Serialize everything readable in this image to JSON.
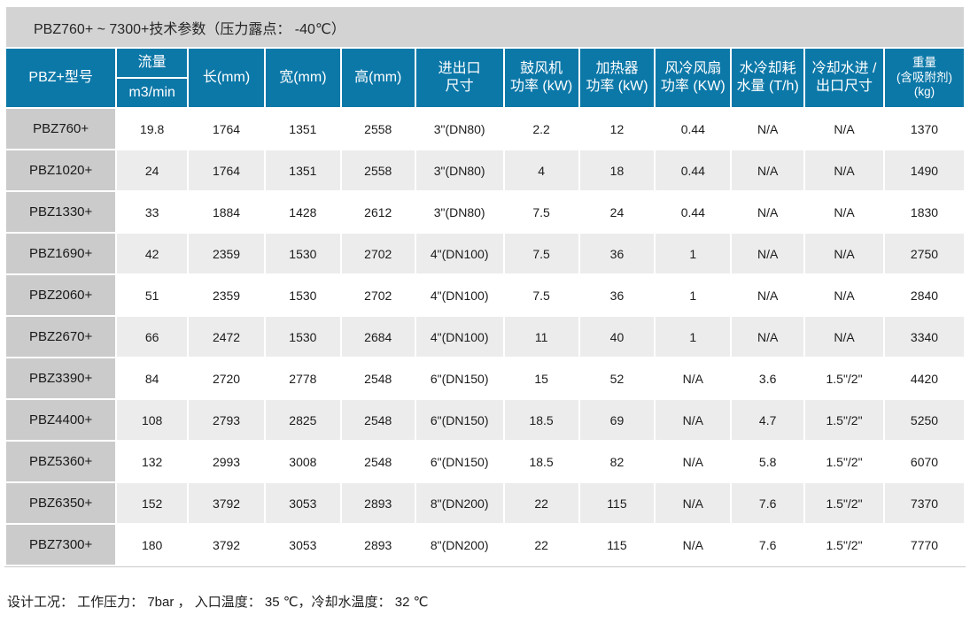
{
  "title": "PBZ760+ ~ 7300+技术参数（压力露点： -40℃）",
  "table": {
    "columns": [
      "PBZ+型号",
      "流量",
      "长(mm)",
      "宽(mm)",
      "高(mm)",
      "进出口\n尺寸",
      "鼓风机\n功率 (kW)",
      "加热器\n功率 (kW)",
      "风冷风扇\n功率 (KW)",
      "水冷却耗\n水量 (T/h)",
      "冷却水进 /\n出口尺寸",
      "重量\n(含吸附剂)\n(kg)"
    ],
    "flow_unit": "m3/min",
    "rows": [
      {
        "model": "PBZ760+",
        "values": [
          "19.8",
          "1764",
          "1351",
          "2558",
          "3\"(DN80)",
          "2.2",
          "12",
          "0.44",
          "N/A",
          "N/A",
          "1370"
        ]
      },
      {
        "model": "PBZ1020+",
        "values": [
          "24",
          "1764",
          "1351",
          "2558",
          "3\"(DN80)",
          "4",
          "18",
          "0.44",
          "N/A",
          "N/A",
          "1490"
        ]
      },
      {
        "model": "PBZ1330+",
        "values": [
          "33",
          "1884",
          "1428",
          "2612",
          "3\"(DN80)",
          "7.5",
          "24",
          "0.44",
          "N/A",
          "N/A",
          "1830"
        ]
      },
      {
        "model": "PBZ1690+",
        "values": [
          "42",
          "2359",
          "1530",
          "2702",
          "4\"(DN100)",
          "7.5",
          "36",
          "1",
          "N/A",
          "N/A",
          "2750"
        ]
      },
      {
        "model": "PBZ2060+",
        "values": [
          "51",
          "2359",
          "1530",
          "2702",
          "4\"(DN100)",
          "7.5",
          "36",
          "1",
          "N/A",
          "N/A",
          "2840"
        ]
      },
      {
        "model": "PBZ2670+",
        "values": [
          "66",
          "2472",
          "1530",
          "2684",
          "4\"(DN100)",
          "11",
          "40",
          "1",
          "N/A",
          "N/A",
          "3340"
        ]
      },
      {
        "model": "PBZ3390+",
        "values": [
          "84",
          "2720",
          "2778",
          "2548",
          "6\"(DN150)",
          "15",
          "52",
          "N/A",
          "3.6",
          "1.5\"/2\"",
          "4420"
        ]
      },
      {
        "model": "PBZ4400+",
        "values": [
          "108",
          "2793",
          "2825",
          "2548",
          "6\"(DN150)",
          "18.5",
          "69",
          "N/A",
          "4.7",
          "1.5\"/2\"",
          "5250"
        ]
      },
      {
        "model": "PBZ5360+",
        "values": [
          "132",
          "2993",
          "3008",
          "2548",
          "6\"(DN150)",
          "18.5",
          "82",
          "N/A",
          "5.8",
          "1.5\"/2\"",
          "6070"
        ]
      },
      {
        "model": "PBZ6350+",
        "values": [
          "152",
          "3792",
          "3053",
          "2893",
          "8\"(DN200)",
          "22",
          "115",
          "N/A",
          "7.6",
          "1.5\"/2\"",
          "7370"
        ]
      },
      {
        "model": "PBZ7300+",
        "values": [
          "180",
          "3792",
          "3053",
          "2893",
          "8\"(DN200)",
          "22",
          "115",
          "N/A",
          "7.6",
          "1.5\"/2\"",
          "7770"
        ]
      }
    ]
  },
  "footer": "设计工况： 工作压力： 7bar ， 入口温度： 35 ℃，冷却水温度： 32 ℃",
  "colors": {
    "header_blue": "#0C78A8",
    "title_bar_gray": "#D3D3D3",
    "model_column_gray": "#CBCBCB",
    "stripe_gray": "#ECECEC"
  }
}
